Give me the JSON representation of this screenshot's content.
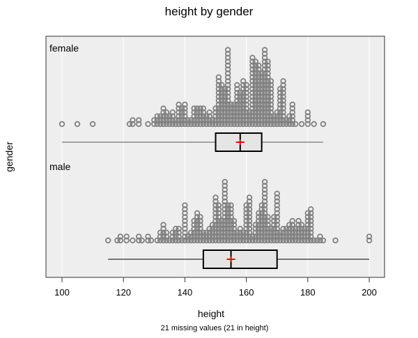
{
  "chart_data": {
    "type": "dotplot-boxplot",
    "title": "height by gender",
    "xlabel": "height",
    "ylabel": "gender",
    "footnote": "21 missing values (21 in height)",
    "xlim": [
      95,
      205
    ],
    "xticks": [
      100,
      120,
      140,
      160,
      180,
      200
    ],
    "grid": true,
    "colors": {
      "panel": "#eeeeee",
      "grid": "#ffffff",
      "dots": "#808080",
      "box": "#e5e5e5",
      "mean": "#ff0000"
    },
    "groups": [
      {
        "name": "female",
        "box": {
          "min": 100,
          "q1": 150,
          "median": 158,
          "q3": 165,
          "max": 185,
          "mean": 158
        },
        "counts": {
          "100": 1,
          "105": 1,
          "110": 1,
          "122": 1,
          "123": 2,
          "125": 2,
          "128": 1,
          "130": 2,
          "131": 3,
          "132": 3,
          "133": 5,
          "134": 4,
          "135": 3,
          "136": 4,
          "137": 2,
          "138": 6,
          "139": 5,
          "140": 6,
          "141": 2,
          "142": 2,
          "143": 5,
          "144": 5,
          "145": 5,
          "146": 5,
          "147": 3,
          "148": 4,
          "149": 2,
          "150": 5,
          "151": 13,
          "152": 11,
          "153": 10,
          "154": 20,
          "155": 6,
          "156": 6,
          "157": 11,
          "158": 9,
          "159": 12,
          "160": 11,
          "161": 4,
          "162": 18,
          "163": 17,
          "164": 16,
          "165": 14,
          "166": 20,
          "167": 17,
          "168": 12,
          "169": 3,
          "170": 4,
          "171": 10,
          "172": 12,
          "173": 2,
          "174": 3,
          "175": 6,
          "176": 1,
          "178": 1,
          "180": 4,
          "182": 1,
          "185": 1
        }
      },
      {
        "name": "male",
        "box": {
          "min": 115,
          "q1": 146,
          "median": 155,
          "q3": 170,
          "max": 200,
          "mean": 155
        },
        "counts": {
          "115": 1,
          "118": 1,
          "119": 2,
          "121": 2,
          "123": 1,
          "125": 2,
          "126": 1,
          "128": 2,
          "129": 1,
          "131": 1,
          "132": 3,
          "133": 5,
          "134": 3,
          "135": 1,
          "136": 3,
          "137": 4,
          "138": 4,
          "139": 1,
          "140": 10,
          "141": 2,
          "142": 3,
          "143": 6,
          "144": 8,
          "145": 7,
          "146": 3,
          "147": 3,
          "148": 4,
          "149": 5,
          "150": 12,
          "151": 10,
          "152": 6,
          "153": 16,
          "154": 10,
          "155": 10,
          "156": 6,
          "157": 3,
          "158": 4,
          "159": 3,
          "160": 10,
          "161": 12,
          "162": 2,
          "163": 5,
          "164": 8,
          "165": 10,
          "166": 16,
          "167": 7,
          "168": 4,
          "169": 7,
          "170": 13,
          "171": 3,
          "172": 4,
          "173": 4,
          "174": 5,
          "175": 6,
          "176": 4,
          "177": 6,
          "178": 5,
          "179": 4,
          "180": 8,
          "181": 9,
          "182": 1,
          "183": 1,
          "184": 2,
          "185": 1,
          "189": 1,
          "200": 2
        }
      }
    ]
  }
}
